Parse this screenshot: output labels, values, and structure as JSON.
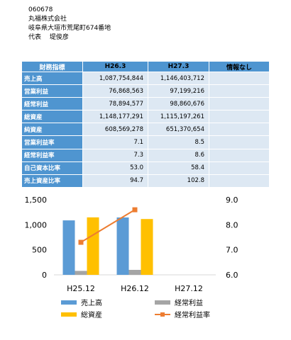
{
  "company": {
    "code": "060678",
    "name": "丸福株式会社",
    "address": "岐阜県大垣市荒尾町674番地",
    "representative": "代表　 堤俊彦"
  },
  "table": {
    "headers": [
      "財務指標",
      "H26.3",
      "H27.3",
      "情報なし"
    ],
    "rows": [
      {
        "label": "売上高",
        "values": [
          "1,087,754,844",
          "1,146,403,712",
          ""
        ]
      },
      {
        "label": "営業利益",
        "values": [
          "76,868,563",
          "97,199,216",
          ""
        ]
      },
      {
        "label": "経常利益",
        "values": [
          "78,894,577",
          "98,860,676",
          ""
        ]
      },
      {
        "label": "総資産",
        "values": [
          "1,148,177,291",
          "1,115,197,261",
          ""
        ]
      },
      {
        "label": "純資産",
        "values": [
          "608,569,278",
          "651,370,654",
          ""
        ]
      },
      {
        "label": "営業利益率",
        "values": [
          "7.1",
          "8.5",
          ""
        ]
      },
      {
        "label": "経常利益率",
        "values": [
          "7.3",
          "8.6",
          ""
        ]
      },
      {
        "label": "自己資本比率",
        "values": [
          "53.0",
          "58.4",
          ""
        ]
      },
      {
        "label": "売上資産比率",
        "values": [
          "94.7",
          "102.8",
          ""
        ]
      }
    ]
  },
  "chart_data": {
    "type": "bar",
    "categories": [
      "H25.12",
      "H26.12",
      "H27.12"
    ],
    "series": [
      {
        "name": "売上高",
        "kind": "bar",
        "axis": "left",
        "color": "#5b9bd5",
        "values": [
          1088,
          1146,
          null
        ]
      },
      {
        "name": "経常利益",
        "kind": "bar",
        "axis": "left",
        "color": "#a5a5a5",
        "values": [
          79,
          99,
          null
        ]
      },
      {
        "name": "総資産",
        "kind": "bar",
        "axis": "left",
        "color": "#ffc000",
        "values": [
          1148,
          1115,
          null
        ]
      },
      {
        "name": "経常利益率",
        "kind": "line",
        "axis": "right",
        "color": "#ed7d31",
        "values": [
          7.3,
          8.6,
          null
        ]
      }
    ],
    "yleft": {
      "min": 0,
      "max": 1500,
      "ticks": [
        "0",
        "500",
        "1,000",
        "1,500"
      ]
    },
    "yright": {
      "min": 6.0,
      "max": 9.0,
      "ticks": [
        "6.0",
        "7.0",
        "8.0",
        "9.0"
      ]
    },
    "grid": false,
    "legend": "bottom"
  }
}
